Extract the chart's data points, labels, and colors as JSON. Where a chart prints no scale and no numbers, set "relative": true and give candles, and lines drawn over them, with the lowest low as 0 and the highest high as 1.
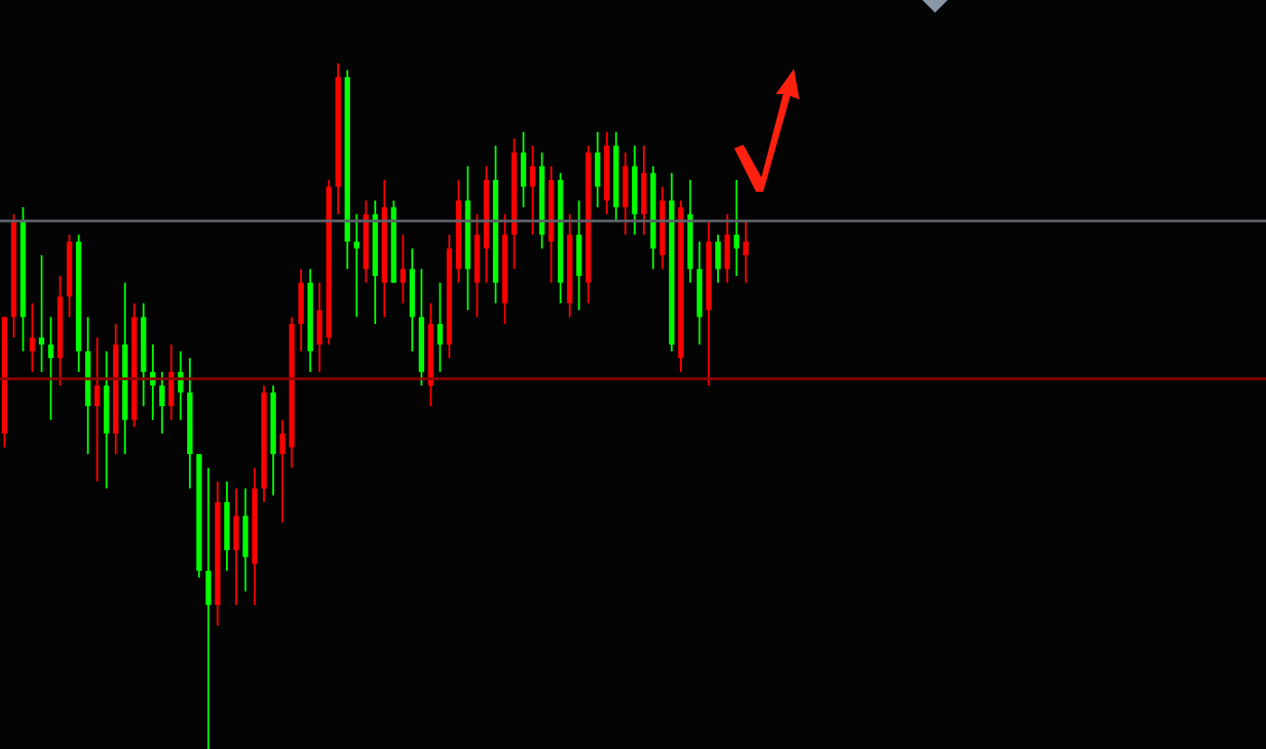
{
  "chart_data": {
    "type": "candlestick",
    "relative": true,
    "categories": [
      null,
      null,
      null,
      null,
      null,
      null,
      null,
      null,
      null,
      null,
      null,
      null,
      null,
      null,
      null,
      null,
      null,
      null,
      null,
      null,
      null,
      null,
      null,
      null,
      null,
      null,
      null,
      null,
      null,
      null,
      null,
      null,
      null,
      null,
      null,
      null,
      null,
      null,
      null,
      null,
      null,
      null,
      null,
      null,
      null,
      null,
      null,
      null,
      null,
      null,
      null,
      null,
      null,
      null,
      null,
      null,
      null,
      null,
      null,
      null,
      null,
      null,
      null,
      null,
      null,
      null,
      null,
      null,
      null,
      null,
      null,
      null,
      null,
      null,
      null,
      null,
      null,
      null,
      null,
      null,
      null
    ],
    "ohlc": [
      [
        0.46,
        0.63,
        0.44,
        0.63
      ],
      [
        0.63,
        0.78,
        0.6,
        0.77
      ],
      [
        0.77,
        0.79,
        0.58,
        0.63
      ],
      [
        0.58,
        0.65,
        0.55,
        0.6
      ],
      [
        0.6,
        0.72,
        0.55,
        0.59
      ],
      [
        0.59,
        0.63,
        0.48,
        0.57
      ],
      [
        0.57,
        0.69,
        0.53,
        0.66
      ],
      [
        0.66,
        0.75,
        0.63,
        0.74
      ],
      [
        0.74,
        0.75,
        0.55,
        0.58
      ],
      [
        0.58,
        0.63,
        0.43,
        0.5
      ],
      [
        0.5,
        0.6,
        0.39,
        0.53
      ],
      [
        0.53,
        0.58,
        0.38,
        0.46
      ],
      [
        0.46,
        0.62,
        0.43,
        0.59
      ],
      [
        0.59,
        0.68,
        0.43,
        0.48
      ],
      [
        0.48,
        0.65,
        0.47,
        0.63
      ],
      [
        0.63,
        0.65,
        0.5,
        0.55
      ],
      [
        0.55,
        0.59,
        0.48,
        0.53
      ],
      [
        0.53,
        0.55,
        0.46,
        0.5
      ],
      [
        0.5,
        0.59,
        0.48,
        0.55
      ],
      [
        0.55,
        0.58,
        0.48,
        0.52
      ],
      [
        0.52,
        0.57,
        0.38,
        0.43
      ],
      [
        0.43,
        0.43,
        0.25,
        0.26
      ],
      [
        0.26,
        0.41,
        0,
        0.21
      ],
      [
        0.21,
        0.39,
        0.18,
        0.36
      ],
      [
        0.36,
        0.39,
        0.26,
        0.29
      ],
      [
        0.29,
        0.38,
        0.21,
        0.34
      ],
      [
        0.34,
        0.38,
        0.23,
        0.28
      ],
      [
        0.27,
        0.41,
        0.21,
        0.38
      ],
      [
        0.38,
        0.53,
        0.36,
        0.52
      ],
      [
        0.52,
        0.53,
        0.37,
        0.43
      ],
      [
        0.43,
        0.48,
        0.33,
        0.46
      ],
      [
        0.44,
        0.63,
        0.41,
        0.62
      ],
      [
        0.62,
        0.7,
        0.58,
        0.68
      ],
      [
        0.68,
        0.7,
        0.55,
        0.58
      ],
      [
        0.59,
        0.68,
        0.55,
        0.64
      ],
      [
        0.6,
        0.83,
        0.59,
        0.82
      ],
      [
        0.82,
        1,
        0.78,
        0.98
      ],
      [
        0.98,
        0.99,
        0.7,
        0.74
      ],
      [
        0.74,
        0.78,
        0.63,
        0.73
      ],
      [
        0.7,
        0.8,
        0.68,
        0.78
      ],
      [
        0.78,
        0.8,
        0.62,
        0.69
      ],
      [
        0.68,
        0.83,
        0.63,
        0.79
      ],
      [
        0.79,
        0.8,
        0.68,
        0.68
      ],
      [
        0.68,
        0.75,
        0.65,
        0.7
      ],
      [
        0.7,
        0.73,
        0.58,
        0.63
      ],
      [
        0.63,
        0.7,
        0.53,
        0.55
      ],
      [
        0.53,
        0.65,
        0.5,
        0.62
      ],
      [
        0.62,
        0.68,
        0.55,
        0.59
      ],
      [
        0.59,
        0.75,
        0.57,
        0.73
      ],
      [
        0.7,
        0.83,
        0.68,
        0.8
      ],
      [
        0.8,
        0.85,
        0.64,
        0.7
      ],
      [
        0.68,
        0.78,
        0.63,
        0.75
      ],
      [
        0.73,
        0.85,
        0.68,
        0.83
      ],
      [
        0.83,
        0.88,
        0.65,
        0.68
      ],
      [
        0.65,
        0.78,
        0.62,
        0.75
      ],
      [
        0.75,
        0.89,
        0.7,
        0.87
      ],
      [
        0.87,
        0.9,
        0.79,
        0.82
      ],
      [
        0.82,
        0.88,
        0.75,
        0.85
      ],
      [
        0.85,
        0.87,
        0.73,
        0.75
      ],
      [
        0.74,
        0.85,
        0.68,
        0.83
      ],
      [
        0.83,
        0.84,
        0.65,
        0.68
      ],
      [
        0.65,
        0.78,
        0.63,
        0.75
      ],
      [
        0.75,
        0.8,
        0.64,
        0.69
      ],
      [
        0.68,
        0.88,
        0.65,
        0.87
      ],
      [
        0.87,
        0.9,
        0.79,
        0.82
      ],
      [
        0.8,
        0.9,
        0.78,
        0.88
      ],
      [
        0.88,
        0.9,
        0.77,
        0.79
      ],
      [
        0.79,
        0.87,
        0.75,
        0.85
      ],
      [
        0.85,
        0.88,
        0.75,
        0.78
      ],
      [
        0.78,
        0.88,
        0.75,
        0.84
      ],
      [
        0.84,
        0.85,
        0.7,
        0.73
      ],
      [
        0.72,
        0.82,
        0.7,
        0.8
      ],
      [
        0.8,
        0.84,
        0.58,
        0.59
      ],
      [
        0.57,
        0.8,
        0.55,
        0.79
      ],
      [
        0.78,
        0.83,
        0.68,
        0.7
      ],
      [
        0.7,
        0.74,
        0.59,
        0.63
      ],
      [
        0.64,
        0.77,
        0.53,
        0.74
      ],
      [
        0.74,
        0.75,
        0.68,
        0.7
      ],
      [
        0.7,
        0.78,
        0.68,
        0.75
      ],
      [
        0.75,
        0.83,
        0.69,
        0.73
      ],
      [
        0.72,
        0.77,
        0.68,
        0.74
      ]
    ],
    "colors": [
      "#ff0000",
      "#ff0000",
      "#00ff00",
      "#ff0000",
      "#00ff00",
      "#00ff00",
      "#ff0000",
      "#ff0000",
      "#00ff00",
      "#00ff00",
      "#ff0000",
      "#00ff00",
      "#ff0000",
      "#00ff00",
      "#ff0000",
      "#00ff00",
      "#00ff00",
      "#00ff00",
      "#ff0000",
      "#00ff00",
      "#00ff00",
      "#00ff00",
      "#00ff00",
      "#ff0000",
      "#00ff00",
      "#ff0000",
      "#00ff00",
      "#ff0000",
      "#ff0000",
      "#00ff00",
      "#ff0000",
      "#ff0000",
      "#ff0000",
      "#00ff00",
      "#ff0000",
      "#ff0000",
      "#ff0000",
      "#00ff00",
      "#00ff00",
      "#ff0000",
      "#00ff00",
      "#ff0000",
      "#00ff00",
      "#ff0000",
      "#00ff00",
      "#00ff00",
      "#ff0000",
      "#00ff00",
      "#ff0000",
      "#ff0000",
      "#00ff00",
      "#ff0000",
      "#ff0000",
      "#00ff00",
      "#ff0000",
      "#ff0000",
      "#00ff00",
      "#ff0000",
      "#00ff00",
      "#ff0000",
      "#00ff00",
      "#ff0000",
      "#00ff00",
      "#ff0000",
      "#00ff00",
      "#ff0000",
      "#00ff00",
      "#ff0000",
      "#00ff00",
      "#ff0000",
      "#00ff00",
      "#ff0000",
      "#00ff00",
      "#ff0000",
      "#00ff00",
      "#00ff00",
      "#ff0000",
      "#00ff00",
      "#ff0000",
      "#00ff00",
      "#ff0000"
    ],
    "ref_lines": [
      {
        "axis": "y",
        "value": 0.77,
        "color": "#5d636b"
      },
      {
        "axis": "y",
        "value": 0.54,
        "color": "#8b0000"
      }
    ]
  }
}
